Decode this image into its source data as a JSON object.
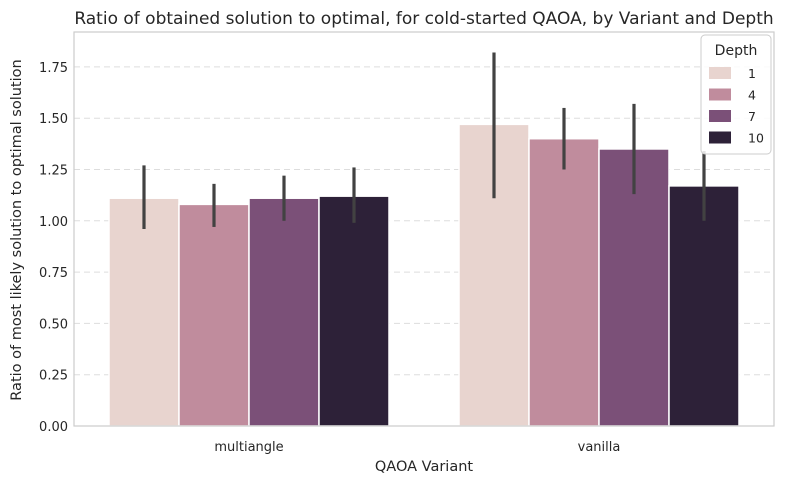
{
  "chart_data": {
    "type": "bar",
    "title": "Ratio of obtained solution to optimal, for cold-started QAOA, by Variant and Depth",
    "xlabel": "QAOA Variant",
    "ylabel": "Ratio of most likely solution to optimal solution",
    "categories": [
      "multiangle",
      "vanilla"
    ],
    "ylim": [
      0,
      1.92
    ],
    "yticks": [
      0.0,
      0.25,
      0.5,
      0.75,
      1.0,
      1.25,
      1.5,
      1.75
    ],
    "ytick_labels": [
      "0.00",
      "0.25",
      "0.50",
      "0.75",
      "1.00",
      "1.25",
      "1.50",
      "1.75"
    ],
    "grid": "y-dashed",
    "legend": {
      "title": "Depth",
      "position": "top-right"
    },
    "series": [
      {
        "name": "1",
        "color": "#e8d4cf",
        "values": [
          1.11,
          1.47
        ],
        "err_low": [
          0.96,
          1.11
        ],
        "err_high": [
          1.27,
          1.82
        ]
      },
      {
        "name": "4",
        "color": "#c08c9d",
        "values": [
          1.08,
          1.4
        ],
        "err_low": [
          0.97,
          1.25
        ],
        "err_high": [
          1.18,
          1.55
        ]
      },
      {
        "name": "7",
        "color": "#7b5078",
        "values": [
          1.11,
          1.35
        ],
        "err_low": [
          1.0,
          1.13
        ],
        "err_high": [
          1.22,
          1.57
        ]
      },
      {
        "name": "10",
        "color": "#2d2138",
        "values": [
          1.12,
          1.17
        ],
        "err_low": [
          0.99,
          1.0
        ],
        "err_high": [
          1.26,
          1.34
        ]
      }
    ]
  }
}
